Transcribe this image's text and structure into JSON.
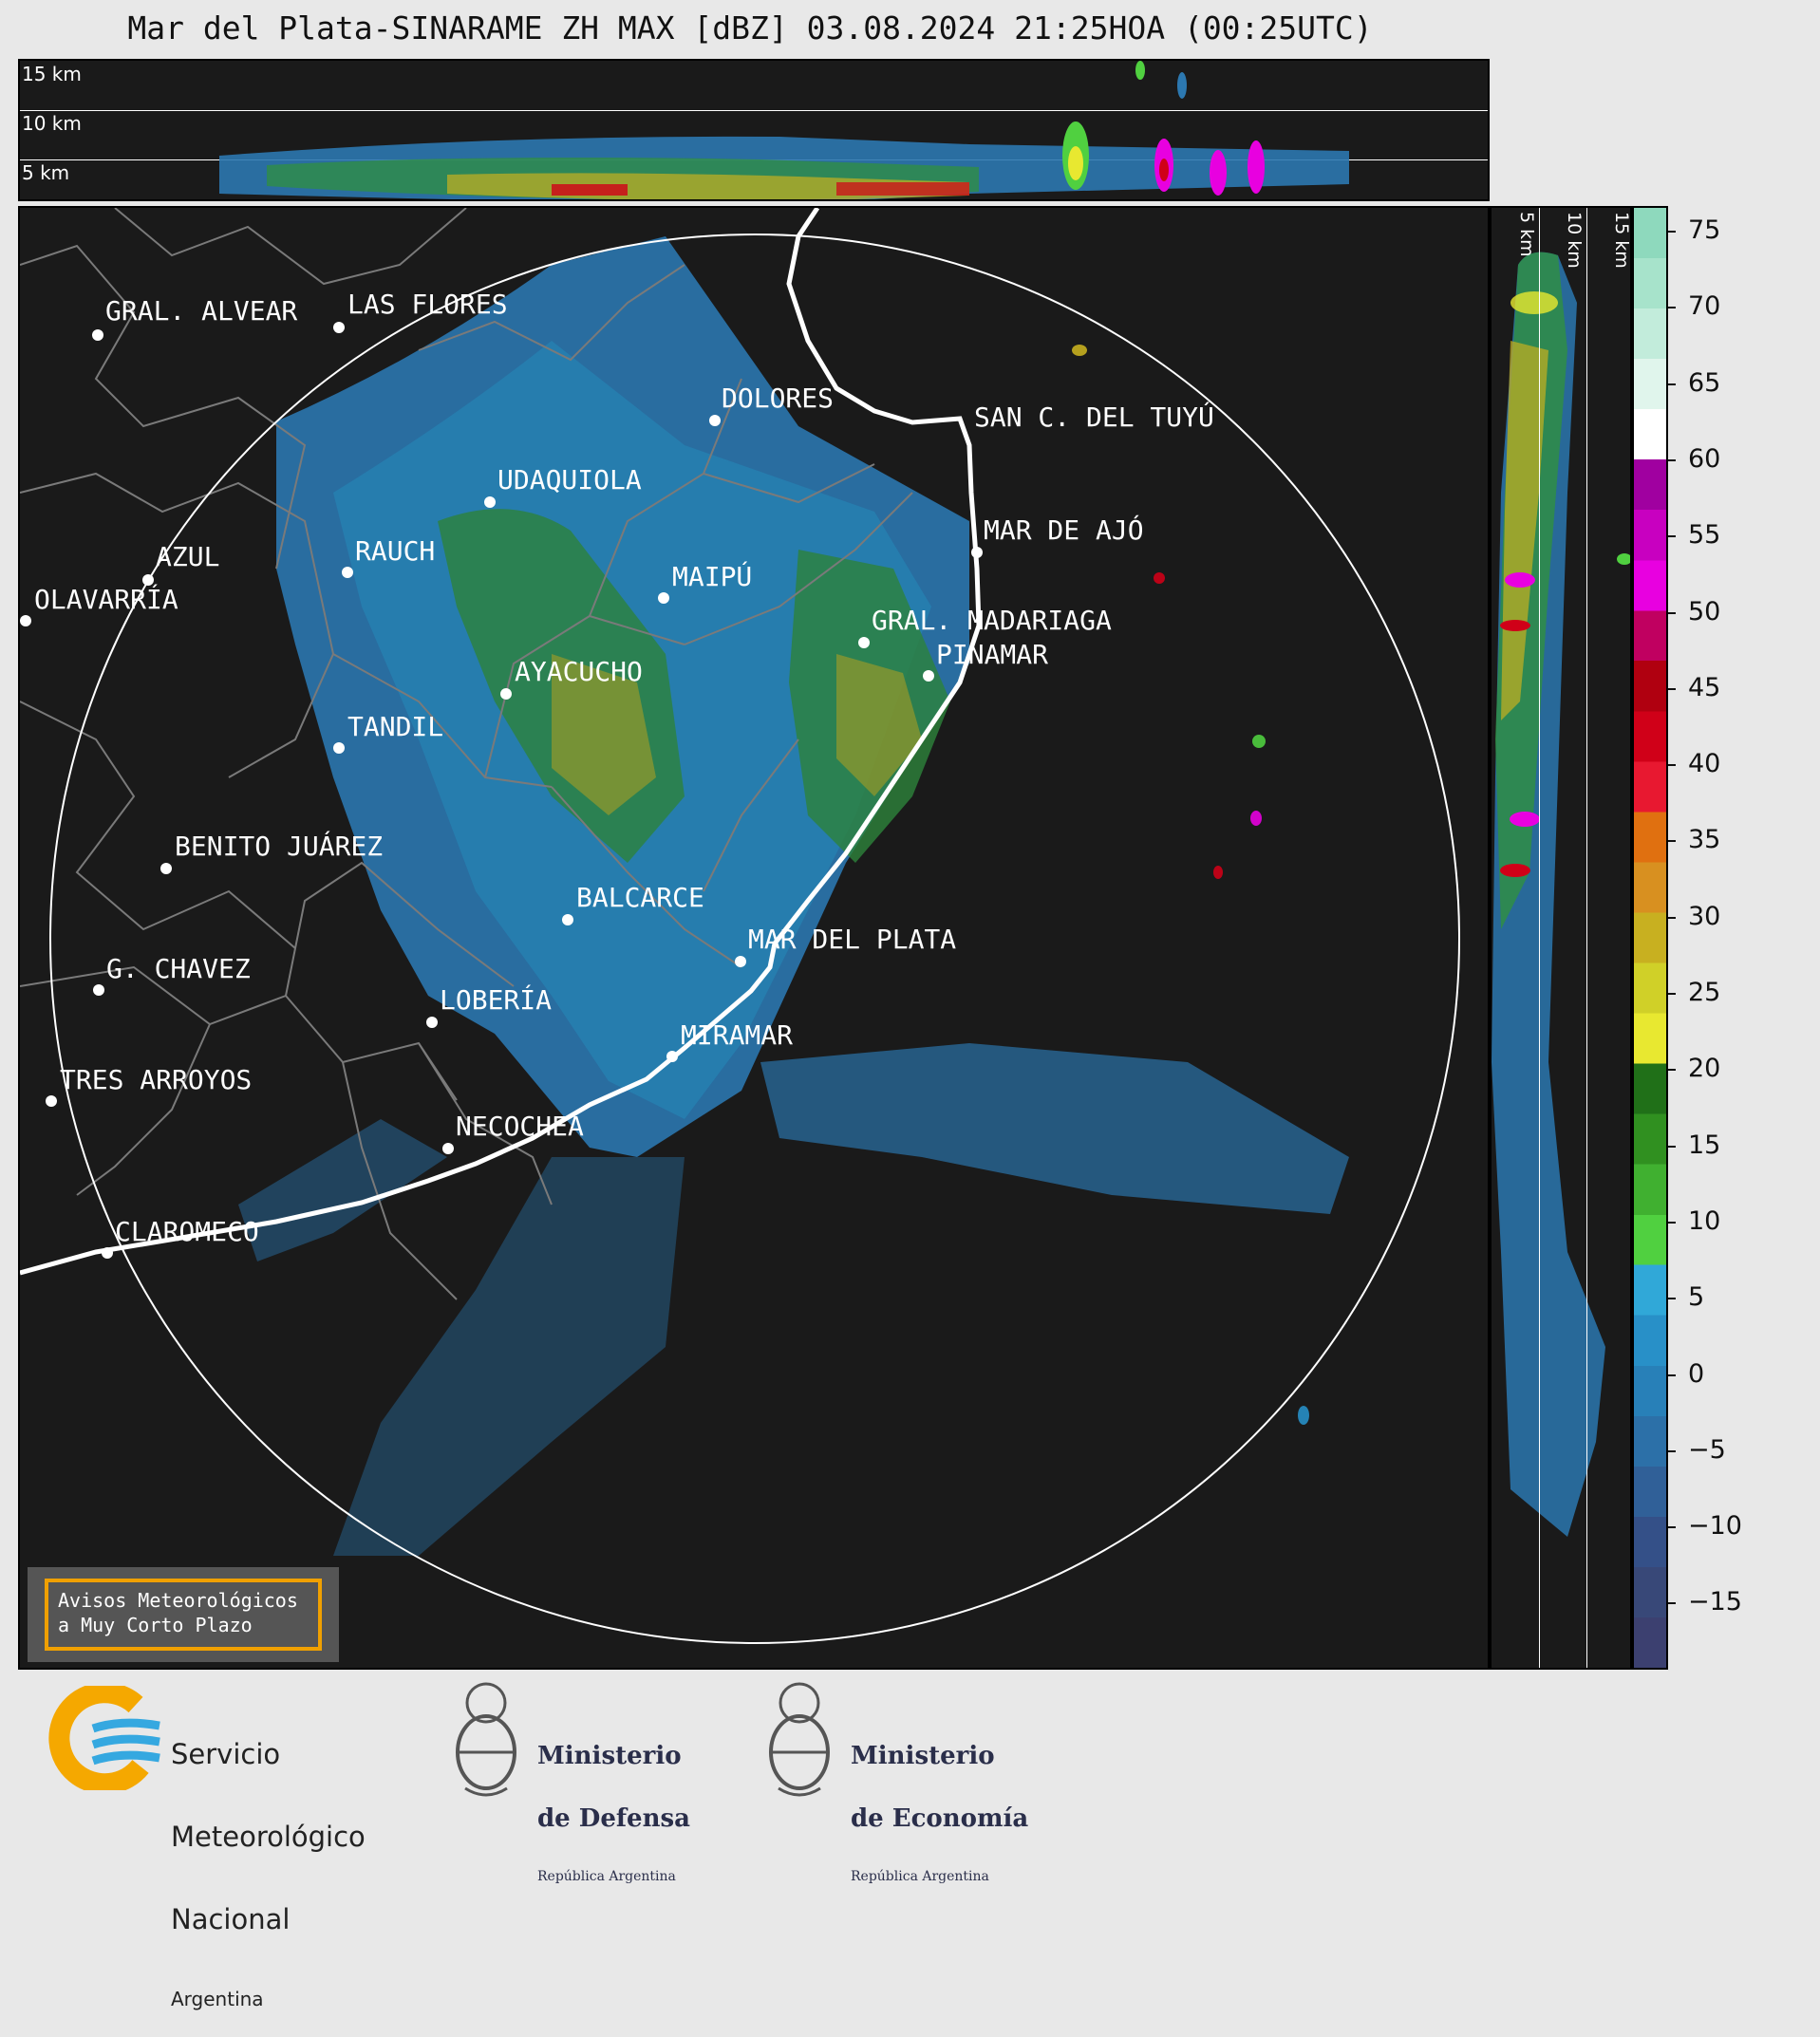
{
  "title": "Mar del Plata-SINARAME ZH MAX [dBZ] 03.08.2024 21:25HOA (00:25UTC)",
  "top_panel": {
    "altitude_labels": [
      "15 km",
      "10 km",
      "5 km"
    ]
  },
  "side_panel": {
    "altitude_labels": [
      "5 km",
      "10 km",
      "15 km"
    ]
  },
  "colorbar": {
    "unit": "dBZ",
    "ticks": [
      "75",
      "70",
      "65",
      "60",
      "55",
      "50",
      "45",
      "40",
      "35",
      "30",
      "25",
      "20",
      "15",
      "10",
      "5",
      "0",
      "−5",
      "−10",
      "−15"
    ],
    "colors": [
      "#8ed9bd",
      "#a7e3cb",
      "#c2ecdb",
      "#e0f5ec",
      "#ffffff",
      "#a000a0",
      "#c800c0",
      "#e800e0",
      "#c00060",
      "#b00010",
      "#d00018",
      "#e81830",
      "#e07010",
      "#d89020",
      "#c8b020",
      "#d0d028",
      "#e8e830",
      "#207018",
      "#309020",
      "#40b030",
      "#50d040",
      "#30a8d8",
      "#2890c8",
      "#2880b8",
      "#2c70a8",
      "#306098",
      "#345088",
      "#384878",
      "#3c4070"
    ]
  },
  "map": {
    "cities": [
      {
        "name": "GRAL. ALVEAR"
      },
      {
        "name": "LAS FLORES"
      },
      {
        "name": "DOLORES"
      },
      {
        "name": "SAN C. DEL TUYÚ"
      },
      {
        "name": "UDAQUIOLA"
      },
      {
        "name": "AZUL"
      },
      {
        "name": "OLAVARRÍA"
      },
      {
        "name": "RAUCH"
      },
      {
        "name": "MAIPÚ"
      },
      {
        "name": "MAR DE AJÓ"
      },
      {
        "name": "GRAL. MADARIAGA"
      },
      {
        "name": "PINAMAR"
      },
      {
        "name": "AYACUCHO"
      },
      {
        "name": "TANDIL"
      },
      {
        "name": "BENITO JUÁREZ"
      },
      {
        "name": "BALCARCE"
      },
      {
        "name": "MAR DEL PLATA"
      },
      {
        "name": "G. CHAVEZ"
      },
      {
        "name": "LOBERÍA"
      },
      {
        "name": "MIRAMAR"
      },
      {
        "name": "TRES ARROYOS"
      },
      {
        "name": "NECOCHEA"
      },
      {
        "name": "CLAROMECO"
      }
    ],
    "legend_box": {
      "line1": "Avisos Meteorológicos",
      "line2": "a Muy Corto Plazo"
    }
  },
  "logos": {
    "smn": {
      "line1": "Servicio",
      "line2": "Meteorológico",
      "line3": "Nacional",
      "line4": "Argentina"
    },
    "defensa": {
      "line1": "Ministerio",
      "line2": "de Defensa",
      "line3": "República Argentina"
    },
    "economia": {
      "line1": "Ministerio",
      "line2": "de Economía",
      "line3": "República Argentina"
    }
  }
}
